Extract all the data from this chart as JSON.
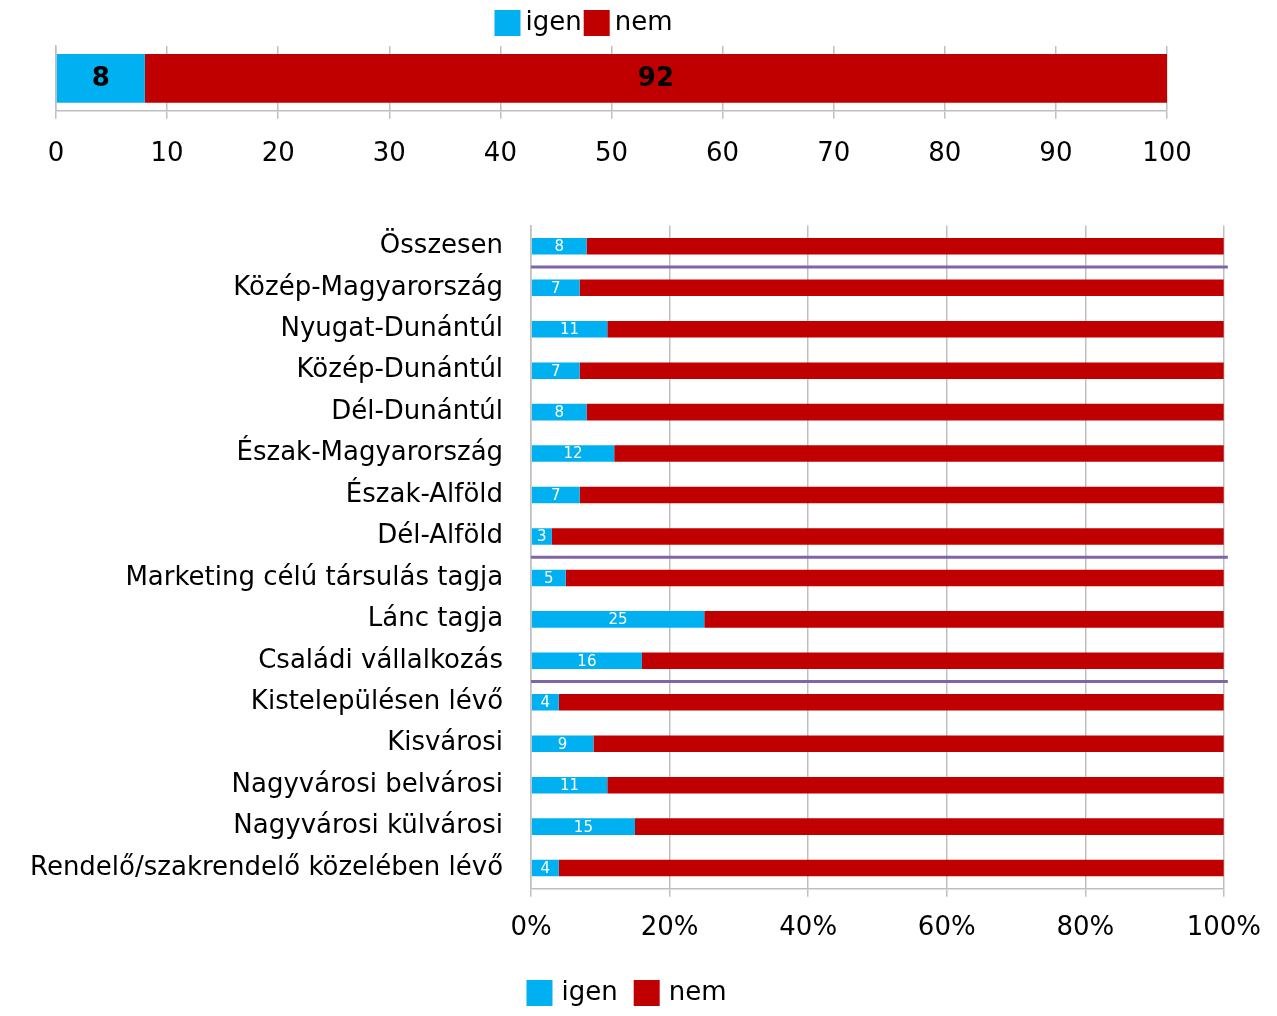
{
  "chart_data": [
    {
      "type": "bar",
      "orientation": "horizontal",
      "stacked": true,
      "categories": [
        null
      ],
      "series": [
        {
          "name": "igen",
          "color": "#00b0f0",
          "values": [
            8
          ]
        },
        {
          "name": "nem",
          "color": "#c00000",
          "values": [
            92
          ]
        }
      ],
      "xlim": [
        0,
        100
      ],
      "xticks": [
        0,
        10,
        20,
        30,
        40,
        50,
        60,
        70,
        80,
        90,
        100
      ],
      "grid": "x",
      "legend": "top",
      "data_labels": true
    },
    {
      "type": "bar",
      "orientation": "horizontal",
      "stacked": true,
      "categories": [
        "Összesen",
        "Közép-Magyarország",
        "Nyugat-Dunántúl",
        "Közép-Dunántúl",
        "Dél-Dunántúl",
        "Észak-Magyarország",
        "Észak-Alföld",
        "Dél-Alföld",
        "Marketing célú társulás tagja",
        "Lánc tagja",
        "Családi vállalkozás",
        "Kistelepülésen lévő",
        "Kisvárosi",
        "Nagyvárosi belvárosi",
        "Nagyvárosi külvárosi",
        "Rendelő/szakrendelő közelében lévő"
      ],
      "series": [
        {
          "name": "igen",
          "color": "#00b0f0",
          "values": [
            8,
            7,
            11,
            7,
            8,
            12,
            7,
            3,
            5,
            25,
            16,
            4,
            9,
            11,
            15,
            4
          ],
          "value_labels": [
            "8",
            "7",
            "11",
            "7",
            "8",
            "12",
            "7",
            "3",
            "5",
            "25",
            "16",
            "4",
            "9",
            "11",
            "15",
            "4"
          ]
        },
        {
          "name": "nem",
          "color": "#c00000",
          "values": [
            92,
            93,
            89,
            93,
            92,
            88,
            93,
            97,
            95,
            75,
            84,
            96,
            91,
            89,
            85,
            96
          ]
        }
      ],
      "xlim": [
        0,
        100
      ],
      "xticks": [
        {
          "value": 0,
          "label": "0%"
        },
        {
          "value": 20,
          "label": "20%"
        },
        {
          "value": 40,
          "label": "40%"
        },
        {
          "value": 60,
          "label": "60%"
        },
        {
          "value": 80,
          "label": "80%"
        },
        {
          "value": 100,
          "label": "100%"
        }
      ],
      "grid": "x",
      "legend": "bottom"
    }
  ]
}
